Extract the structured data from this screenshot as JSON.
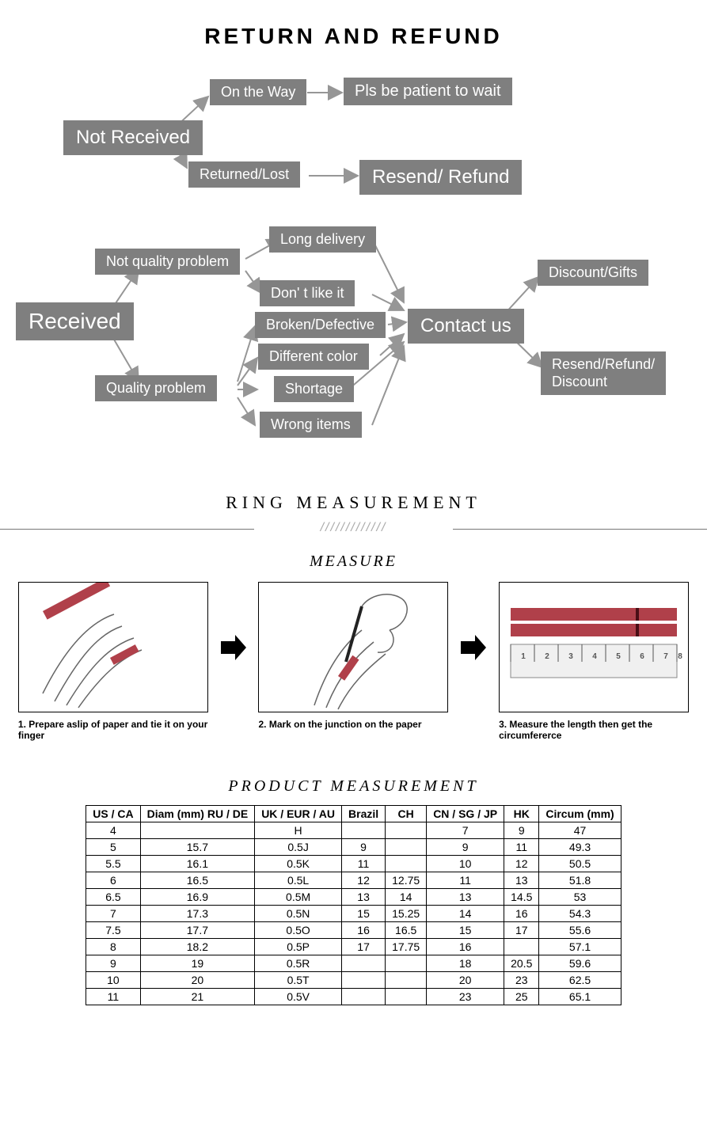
{
  "title": "RETURN AND REFUND",
  "flow": {
    "box_bg": "#7f7f7f",
    "box_fg": "#ffffff",
    "nodes": {
      "not_received": "Not Received",
      "on_the_way": "On the Way",
      "returned_lost": "Returned/Lost",
      "pls_patient": "Pls be patient to wait",
      "resend_refund": "Resend/ Refund",
      "received": "Received",
      "not_quality": "Not quality problem",
      "quality": "Quality problem",
      "long_delivery": "Long delivery",
      "dont_like": "Don' t like it",
      "broken": "Broken/Defective",
      "diff_color": "Different color",
      "shortage": "Shortage",
      "wrong_items": "Wrong items",
      "contact_us": "Contact us",
      "discount_gifts": "Discount/Gifts",
      "resend_refund_disc": "Resend/Refund/\nDiscount"
    }
  },
  "ring_header": "RING MEASUREMENT",
  "slashes": "/////////////",
  "measure_header": "MEASURE",
  "measure_steps": [
    "1. Prepare aslip of paper and tie it on your finger",
    "2. Mark on the junction on the paper",
    "3. Measure the length then get the circumfererce"
  ],
  "product_header": "PRODUCT MEASUREMENT",
  "table": {
    "columns": [
      "US / CA",
      "Diam (mm) RU / DE",
      "UK / EUR / AU",
      "Brazil",
      "CH",
      "CN / SG / JP",
      "HK",
      "Circum (mm)"
    ],
    "rows": [
      [
        "4",
        "",
        "H",
        "",
        "",
        "7",
        "9",
        "47"
      ],
      [
        "5",
        "15.7",
        "0.5J",
        "9",
        "",
        "9",
        "11",
        "49.3"
      ],
      [
        "5.5",
        "16.1",
        "0.5K",
        "11",
        "",
        "10",
        "12",
        "50.5"
      ],
      [
        "6",
        "16.5",
        "0.5L",
        "12",
        "12.75",
        "11",
        "13",
        "51.8"
      ],
      [
        "6.5",
        "16.9",
        "0.5M",
        "13",
        "14",
        "13",
        "14.5",
        "53"
      ],
      [
        "7",
        "17.3",
        "0.5N",
        "15",
        "15.25",
        "14",
        "16",
        "54.3"
      ],
      [
        "7.5",
        "17.7",
        "0.5O",
        "16",
        "16.5",
        "15",
        "17",
        "55.6"
      ],
      [
        "8",
        "18.2",
        "0.5P",
        "17",
        "17.75",
        "16",
        "",
        "57.1"
      ],
      [
        "9",
        "19",
        "0.5R",
        "",
        "",
        "18",
        "20.5",
        "59.6"
      ],
      [
        "10",
        "20",
        "0.5T",
        "",
        "",
        "20",
        "23",
        "62.5"
      ],
      [
        "11",
        "21",
        "0.5V",
        "",
        "",
        "23",
        "25",
        "65.1"
      ]
    ]
  },
  "ruler_color": "#b0404a"
}
